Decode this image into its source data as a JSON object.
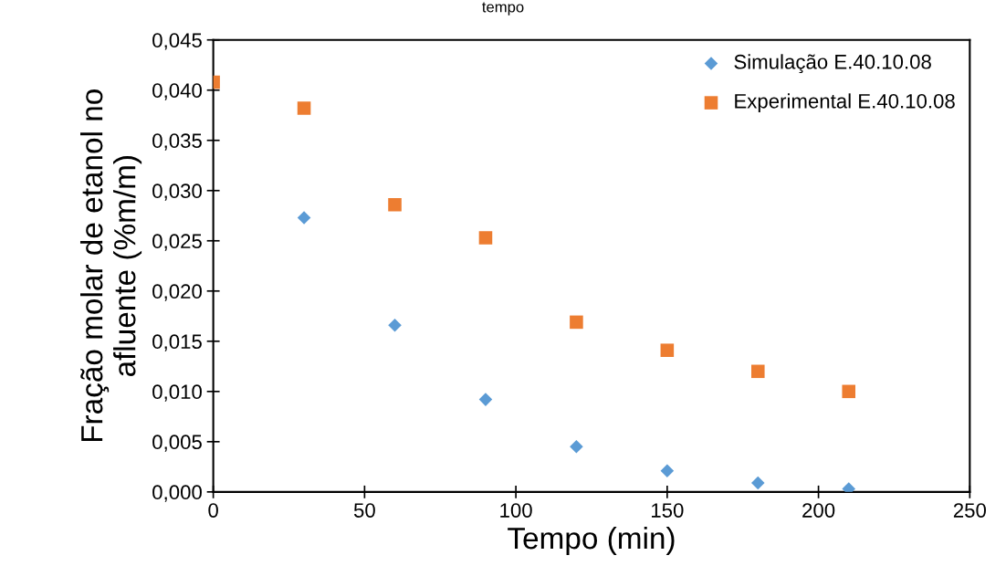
{
  "chart_data": {
    "type": "scatter",
    "title": "tempo",
    "xlabel": "Tempo (min)",
    "ylabel": "Fração molar de etanol no\nafluente (%m/m)",
    "series": [
      {
        "name": "Simulação E.40.10.08",
        "color": "#5b9bd5",
        "marker": "diamond",
        "x": [
          30,
          60,
          90,
          120,
          150,
          180,
          210
        ],
        "values": [
          0.0273,
          0.0166,
          0.0092,
          0.0045,
          0.0021,
          0.0009,
          0.0003
        ]
      },
      {
        "name": "Experimental E.40.10.08",
        "color": "#ed7d31",
        "marker": "square",
        "x": [
          0,
          30,
          60,
          90,
          120,
          150,
          180,
          210
        ],
        "values": [
          0.0408,
          0.0382,
          0.0286,
          0.0253,
          0.0169,
          0.0141,
          0.012,
          0.01
        ]
      }
    ],
    "xlim": [
      0,
      250
    ],
    "xticks": [
      0,
      50,
      100,
      150,
      200,
      250
    ],
    "ylim": [
      0,
      0.045
    ],
    "yticks": [
      {
        "value": 0,
        "label": "0,000"
      },
      {
        "value": 0.005,
        "label": "0,005"
      },
      {
        "value": 0.01,
        "label": "0,010"
      },
      {
        "value": 0.015,
        "label": "0,015"
      },
      {
        "value": 0.02,
        "label": "0,020"
      },
      {
        "value": 0.025,
        "label": "0,025"
      },
      {
        "value": 0.03,
        "label": "0,030"
      },
      {
        "value": 0.035,
        "label": "0,035"
      },
      {
        "value": 0.04,
        "label": "0,040"
      },
      {
        "value": 0.045,
        "label": "0,045"
      }
    ],
    "grid": false,
    "legend": "top right"
  }
}
